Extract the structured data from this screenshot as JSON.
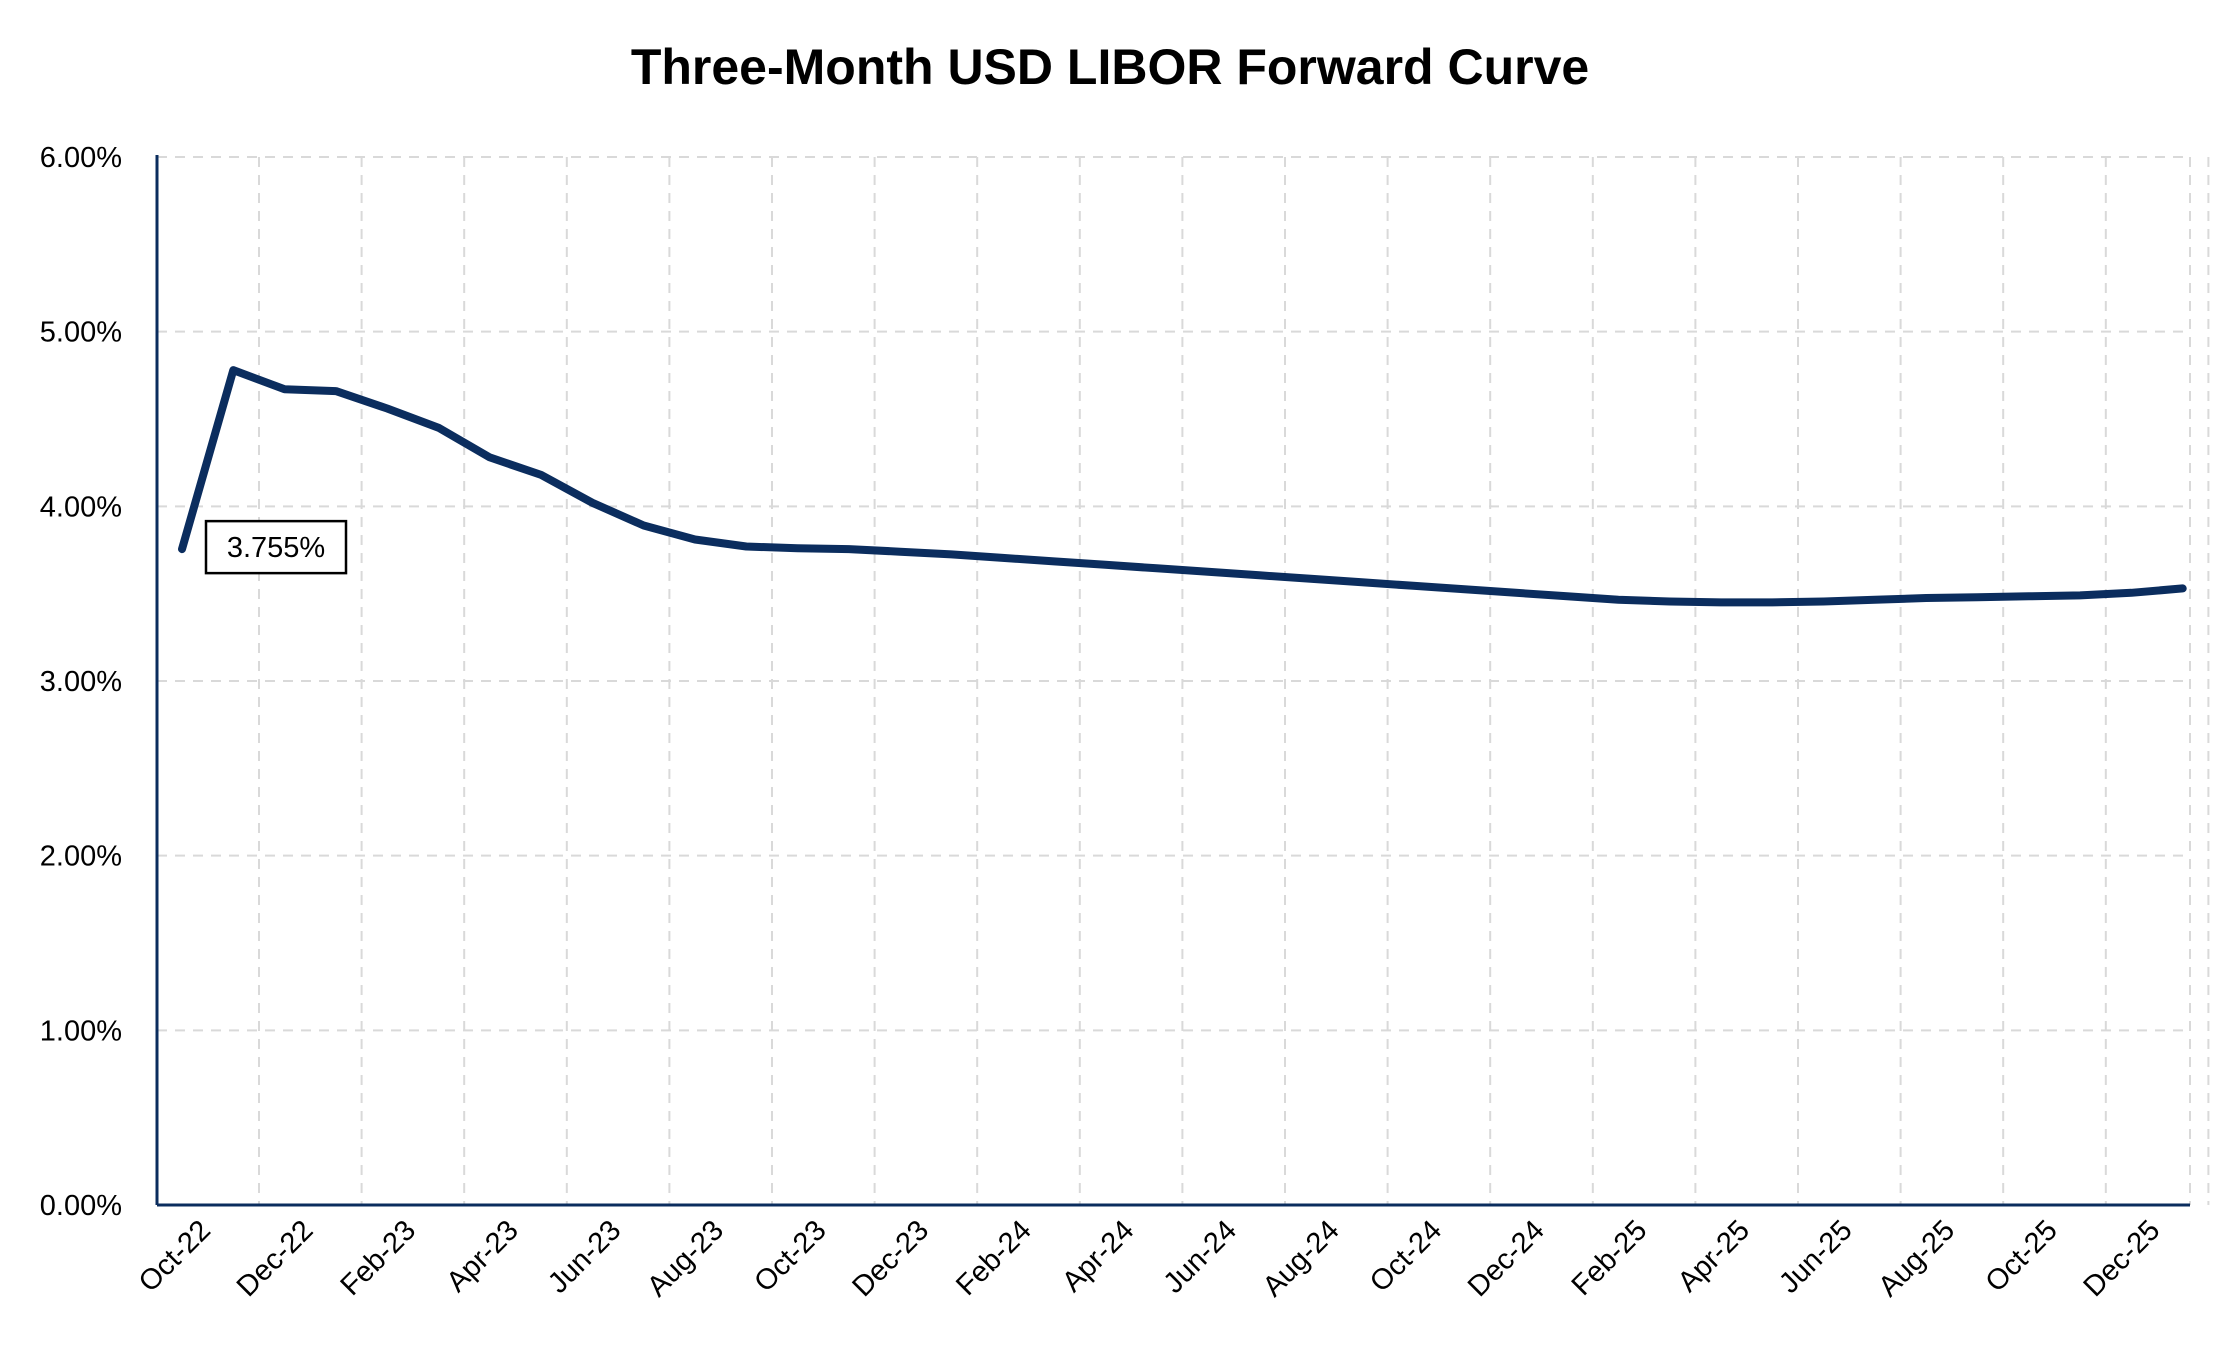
{
  "chart_data": {
    "type": "line",
    "title": "Three-Month USD LIBOR Forward Curve",
    "xlabel": "",
    "ylabel": "",
    "ylim": [
      0,
      6
    ],
    "yticks": [
      "0.00%",
      "1.00%",
      "2.00%",
      "3.00%",
      "4.00%",
      "5.00%",
      "6.00%"
    ],
    "x_ticks": [
      "Oct-22",
      "Dec-22",
      "Feb-23",
      "Apr-23",
      "Jun-23",
      "Aug-23",
      "Oct-23",
      "Dec-23",
      "Feb-24",
      "Apr-24",
      "Jun-24",
      "Aug-24",
      "Oct-24",
      "Dec-24",
      "Feb-25",
      "Apr-25",
      "Jun-25",
      "Aug-25",
      "Oct-25",
      "Dec-25"
    ],
    "grid": true,
    "series": [
      {
        "color": "#0b2d5e",
        "x": [
          "Oct-22",
          "Nov-22",
          "Dec-22",
          "Jan-23",
          "Feb-23",
          "Mar-23",
          "Apr-23",
          "May-23",
          "Jun-23",
          "Jul-23",
          "Aug-23",
          "Sep-23",
          "Oct-23",
          "Nov-23",
          "Dec-23",
          "Jan-24",
          "Feb-24",
          "Mar-24",
          "Apr-24",
          "May-24",
          "Jun-24",
          "Jul-24",
          "Aug-24",
          "Sep-24",
          "Oct-24",
          "Nov-24",
          "Dec-24",
          "Jan-25",
          "Feb-25",
          "Mar-25",
          "Apr-25",
          "May-25",
          "Jun-25",
          "Jul-25",
          "Aug-25",
          "Sep-25",
          "Oct-25",
          "Nov-25",
          "Dec-25",
          "Jan-26"
        ],
        "values": [
          3.755,
          4.78,
          4.67,
          4.66,
          4.56,
          4.45,
          4.28,
          4.18,
          4.02,
          3.89,
          3.81,
          3.77,
          3.76,
          3.755,
          3.74,
          3.725,
          3.705,
          3.685,
          3.665,
          3.645,
          3.625,
          3.605,
          3.585,
          3.565,
          3.545,
          3.525,
          3.505,
          3.485,
          3.465,
          3.455,
          3.45,
          3.45,
          3.455,
          3.465,
          3.475,
          3.48,
          3.485,
          3.49,
          3.505,
          3.53
        ]
      }
    ],
    "annotations": [
      {
        "text": "3.755%",
        "x": "Oct-22",
        "y": 3.755
      }
    ]
  }
}
